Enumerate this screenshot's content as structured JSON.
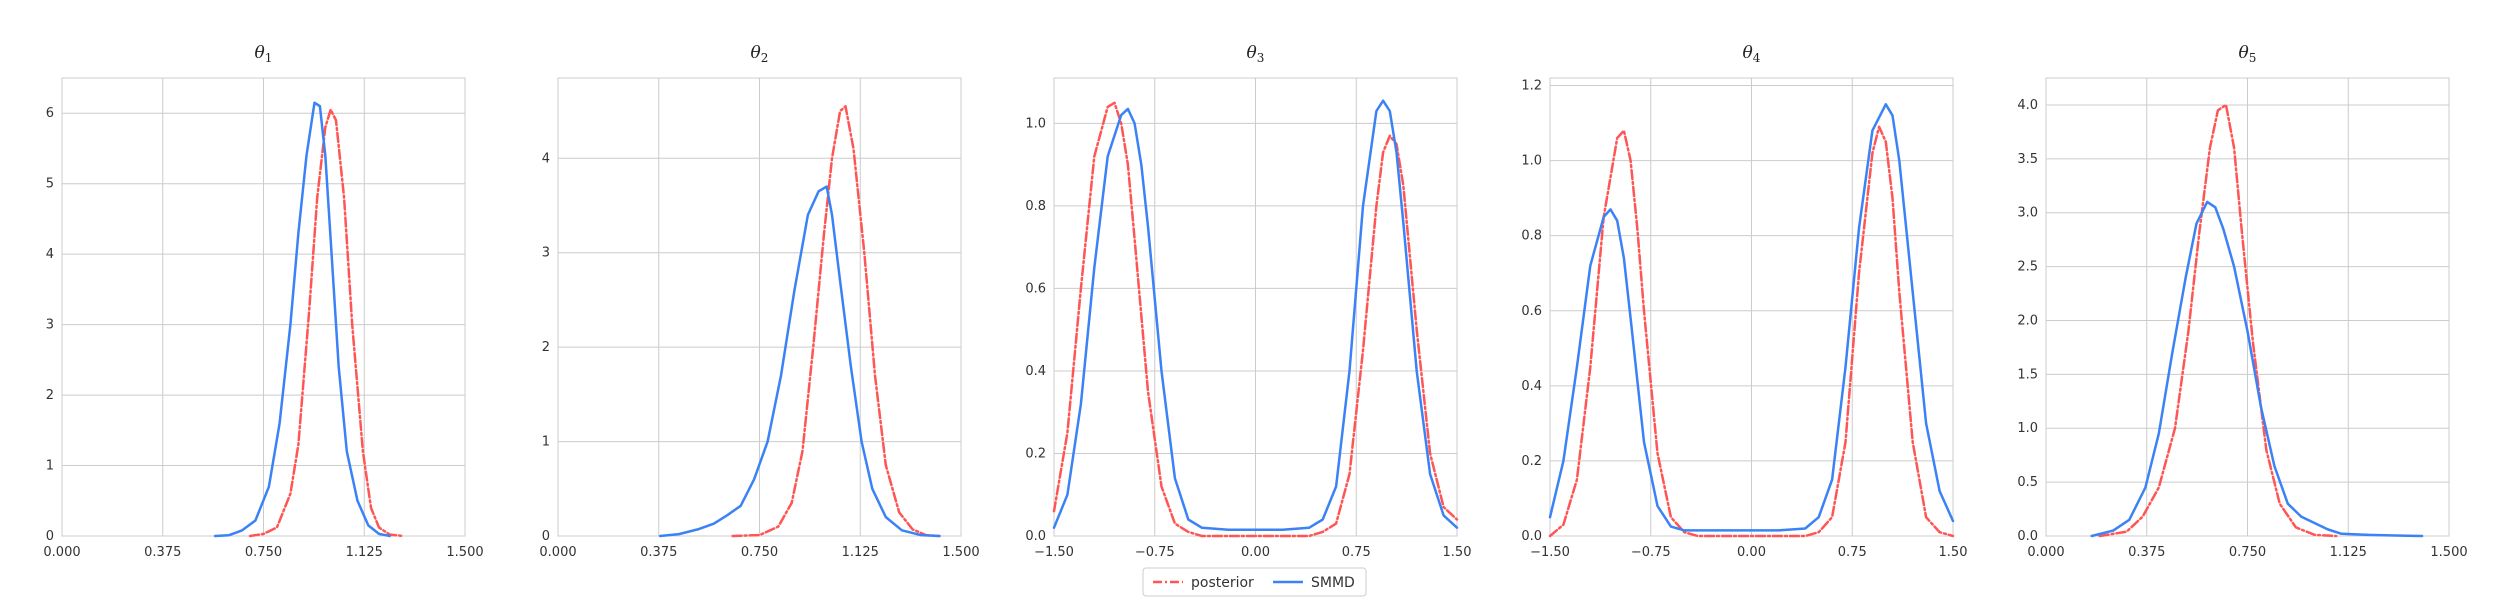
{
  "chart_data": [
    {
      "type": "line",
      "title": "θ",
      "title_sub": "1",
      "xlim": [
        0,
        1.5
      ],
      "ylim": [
        0,
        6.5
      ],
      "xticks": [
        0,
        0.375,
        0.75,
        1.125,
        1.5
      ],
      "xtick_labels": [
        "0.000",
        "0.375",
        "0.750",
        "1.125",
        "1.500"
      ],
      "yticks": [
        0,
        1,
        2,
        3,
        4,
        5,
        6
      ],
      "ytick_labels": [
        "0",
        "1",
        "2",
        "3",
        "4",
        "5",
        "6"
      ],
      "series": [
        {
          "name": "posterior",
          "x": [
            0.7,
            0.75,
            0.8,
            0.85,
            0.88,
            0.92,
            0.95,
            0.98,
            1.0,
            1.02,
            1.05,
            1.08,
            1.12,
            1.15,
            1.18,
            1.22,
            1.27
          ],
          "y": [
            0.0,
            0.03,
            0.12,
            0.6,
            1.3,
            3.2,
            4.8,
            5.8,
            6.05,
            5.9,
            4.8,
            3.0,
            1.2,
            0.4,
            0.12,
            0.02,
            0.0
          ]
        },
        {
          "name": "SMMD",
          "x": [
            0.57,
            0.62,
            0.67,
            0.72,
            0.77,
            0.81,
            0.85,
            0.88,
            0.91,
            0.94,
            0.96,
            0.98,
            1.0,
            1.03,
            1.06,
            1.1,
            1.14,
            1.18,
            1.22
          ],
          "y": [
            0.0,
            0.01,
            0.08,
            0.22,
            0.7,
            1.6,
            3.0,
            4.3,
            5.4,
            6.15,
            6.1,
            5.4,
            4.2,
            2.4,
            1.2,
            0.5,
            0.15,
            0.03,
            0.0
          ]
        }
      ]
    },
    {
      "type": "line",
      "title": "θ",
      "title_sub": "2",
      "xlim": [
        0,
        1.5
      ],
      "ylim": [
        0,
        4.85
      ],
      "xticks": [
        0,
        0.375,
        0.75,
        1.125,
        1.5
      ],
      "xtick_labels": [
        "0.000",
        "0.375",
        "0.750",
        "1.125",
        "1.500"
      ],
      "yticks": [
        0,
        1,
        2,
        3,
        4
      ],
      "ytick_labels": [
        "0",
        "1",
        "2",
        "3",
        "4"
      ],
      "series": [
        {
          "name": "posterior",
          "x": [
            0.65,
            0.75,
            0.82,
            0.87,
            0.91,
            0.95,
            0.99,
            1.02,
            1.05,
            1.07,
            1.1,
            1.14,
            1.18,
            1.22,
            1.27,
            1.32,
            1.37,
            1.42
          ],
          "y": [
            0.0,
            0.01,
            0.1,
            0.35,
            0.9,
            2.0,
            3.2,
            4.0,
            4.5,
            4.55,
            4.1,
            3.0,
            1.7,
            0.75,
            0.25,
            0.07,
            0.01,
            0.0
          ]
        },
        {
          "name": "SMMD",
          "x": [
            0.38,
            0.45,
            0.52,
            0.58,
            0.63,
            0.68,
            0.73,
            0.78,
            0.83,
            0.88,
            0.93,
            0.97,
            1.0,
            1.02,
            1.05,
            1.09,
            1.13,
            1.17,
            1.22,
            1.28,
            1.35,
            1.42
          ],
          "y": [
            0.0,
            0.02,
            0.07,
            0.13,
            0.22,
            0.32,
            0.6,
            1.0,
            1.7,
            2.6,
            3.4,
            3.65,
            3.7,
            3.4,
            2.7,
            1.8,
            1.0,
            0.5,
            0.2,
            0.06,
            0.01,
            0.0
          ]
        }
      ]
    },
    {
      "type": "line",
      "title": "θ",
      "title_sub": "3",
      "xlim": [
        -1.5,
        1.5
      ],
      "ylim": [
        0,
        1.11
      ],
      "xticks": [
        -1.5,
        -0.75,
        0,
        0.75,
        1.5
      ],
      "xtick_labels": [
        "−1.50",
        "−0.75",
        "0.00",
        "0.75",
        "1.50"
      ],
      "yticks": [
        0,
        0.2,
        0.4,
        0.6,
        0.8,
        1.0
      ],
      "ytick_labels": [
        "0.0",
        "0.2",
        "0.4",
        "0.6",
        "0.8",
        "1.0"
      ],
      "series": [
        {
          "name": "posterior",
          "x": [
            -1.5,
            -1.4,
            -1.3,
            -1.2,
            -1.1,
            -1.05,
            -1.0,
            -0.95,
            -0.9,
            -0.8,
            -0.7,
            -0.6,
            -0.5,
            -0.4,
            -0.2,
            0.0,
            0.2,
            0.4,
            0.5,
            0.6,
            0.7,
            0.8,
            0.9,
            0.95,
            1.0,
            1.05,
            1.1,
            1.2,
            1.3,
            1.4,
            1.5
          ],
          "y": [
            0.06,
            0.25,
            0.6,
            0.92,
            1.04,
            1.05,
            1.0,
            0.9,
            0.72,
            0.35,
            0.12,
            0.03,
            0.01,
            0.0,
            0.0,
            0.0,
            0.0,
            0.0,
            0.01,
            0.03,
            0.15,
            0.45,
            0.8,
            0.93,
            0.97,
            0.95,
            0.85,
            0.5,
            0.2,
            0.07,
            0.04
          ]
        },
        {
          "name": "SMMD",
          "x": [
            -1.5,
            -1.4,
            -1.3,
            -1.2,
            -1.1,
            -1.0,
            -0.95,
            -0.9,
            -0.85,
            -0.8,
            -0.7,
            -0.6,
            -0.5,
            -0.4,
            -0.2,
            0.0,
            0.2,
            0.4,
            0.5,
            0.6,
            0.7,
            0.8,
            0.9,
            0.95,
            1.0,
            1.05,
            1.1,
            1.2,
            1.3,
            1.4,
            1.5
          ],
          "y": [
            0.02,
            0.1,
            0.32,
            0.65,
            0.92,
            1.02,
            1.035,
            1.0,
            0.9,
            0.75,
            0.4,
            0.14,
            0.04,
            0.02,
            0.015,
            0.015,
            0.015,
            0.02,
            0.04,
            0.12,
            0.4,
            0.8,
            1.03,
            1.055,
            1.03,
            0.93,
            0.76,
            0.4,
            0.15,
            0.05,
            0.02
          ]
        }
      ]
    },
    {
      "type": "line",
      "title": "θ",
      "title_sub": "4",
      "xlim": [
        -1.5,
        1.5
      ],
      "ylim": [
        0,
        1.22
      ],
      "xticks": [
        -1.5,
        -0.75,
        0,
        0.75,
        1.5
      ],
      "xtick_labels": [
        "−1.50",
        "−0.75",
        "0.00",
        "0.75",
        "1.50"
      ],
      "yticks": [
        0,
        0.2,
        0.4,
        0.6,
        0.8,
        1.0,
        1.2
      ],
      "ytick_labels": [
        "0.0",
        "0.2",
        "0.4",
        "0.6",
        "0.8",
        "1.0",
        "1.2"
      ],
      "series": [
        {
          "name": "posterior",
          "x": [
            -1.5,
            -1.4,
            -1.3,
            -1.2,
            -1.1,
            -1.0,
            -0.95,
            -0.9,
            -0.85,
            -0.8,
            -0.7,
            -0.6,
            -0.5,
            -0.4,
            -0.2,
            0.0,
            0.2,
            0.4,
            0.5,
            0.6,
            0.7,
            0.8,
            0.9,
            0.95,
            1.0,
            1.05,
            1.1,
            1.2,
            1.3,
            1.4,
            1.5
          ],
          "y": [
            0.0,
            0.03,
            0.15,
            0.45,
            0.85,
            1.06,
            1.08,
            1.0,
            0.82,
            0.6,
            0.22,
            0.05,
            0.01,
            0.0,
            0.0,
            0.0,
            0.0,
            0.0,
            0.01,
            0.05,
            0.25,
            0.7,
            1.02,
            1.09,
            1.05,
            0.9,
            0.65,
            0.25,
            0.05,
            0.01,
            0.0
          ]
        },
        {
          "name": "SMMD",
          "x": [
            -1.5,
            -1.4,
            -1.3,
            -1.2,
            -1.1,
            -1.05,
            -1.0,
            -0.95,
            -0.9,
            -0.8,
            -0.7,
            -0.6,
            -0.5,
            -0.4,
            -0.2,
            0.0,
            0.2,
            0.4,
            0.5,
            0.6,
            0.7,
            0.8,
            0.9,
            1.0,
            1.05,
            1.1,
            1.2,
            1.3,
            1.4,
            1.5
          ],
          "y": [
            0.05,
            0.2,
            0.45,
            0.72,
            0.85,
            0.87,
            0.84,
            0.74,
            0.58,
            0.25,
            0.08,
            0.025,
            0.015,
            0.015,
            0.015,
            0.015,
            0.015,
            0.02,
            0.05,
            0.15,
            0.45,
            0.82,
            1.08,
            1.15,
            1.12,
            1.0,
            0.65,
            0.3,
            0.12,
            0.04
          ]
        }
      ]
    },
    {
      "type": "line",
      "title": "θ",
      "title_sub": "5",
      "xlim": [
        0,
        1.5
      ],
      "ylim": [
        0,
        4.25
      ],
      "xticks": [
        0,
        0.375,
        0.75,
        1.125,
        1.5
      ],
      "xtick_labels": [
        "0.000",
        "0.375",
        "0.750",
        "1.125",
        "1.500"
      ],
      "yticks": [
        0,
        0.5,
        1.0,
        1.5,
        2.0,
        2.5,
        3.0,
        3.5,
        4.0
      ],
      "ytick_labels": [
        "0.0",
        "0.5",
        "1.0",
        "1.5",
        "2.0",
        "2.5",
        "3.0",
        "3.5",
        "4.0"
      ],
      "series": [
        {
          "name": "posterior",
          "x": [
            0.2,
            0.3,
            0.36,
            0.42,
            0.48,
            0.53,
            0.57,
            0.61,
            0.64,
            0.67,
            0.7,
            0.73,
            0.77,
            0.82,
            0.87,
            0.93,
            1.0,
            1.08
          ],
          "y": [
            0.0,
            0.04,
            0.18,
            0.45,
            1.0,
            1.9,
            2.8,
            3.6,
            3.95,
            4.0,
            3.6,
            2.8,
            1.8,
            0.8,
            0.3,
            0.08,
            0.01,
            0.0
          ]
        },
        {
          "name": "SMMD",
          "x": [
            0.17,
            0.25,
            0.31,
            0.37,
            0.42,
            0.47,
            0.52,
            0.56,
            0.6,
            0.63,
            0.66,
            0.7,
            0.75,
            0.8,
            0.85,
            0.9,
            0.95,
            1.0,
            1.05,
            1.1,
            1.2,
            1.3,
            1.4
          ],
          "y": [
            0.0,
            0.05,
            0.15,
            0.45,
            0.95,
            1.7,
            2.4,
            2.9,
            3.1,
            3.05,
            2.85,
            2.5,
            1.9,
            1.2,
            0.65,
            0.3,
            0.18,
            0.12,
            0.06,
            0.02,
            0.01,
            0.005,
            0.0
          ]
        }
      ]
    }
  ],
  "legend": {
    "items": [
      {
        "label": "posterior",
        "color": "#ff5555",
        "style": "dashdot"
      },
      {
        "label": "SMMD",
        "color": "#3b82f6",
        "style": "solid"
      }
    ],
    "placement": "bottom-center"
  }
}
